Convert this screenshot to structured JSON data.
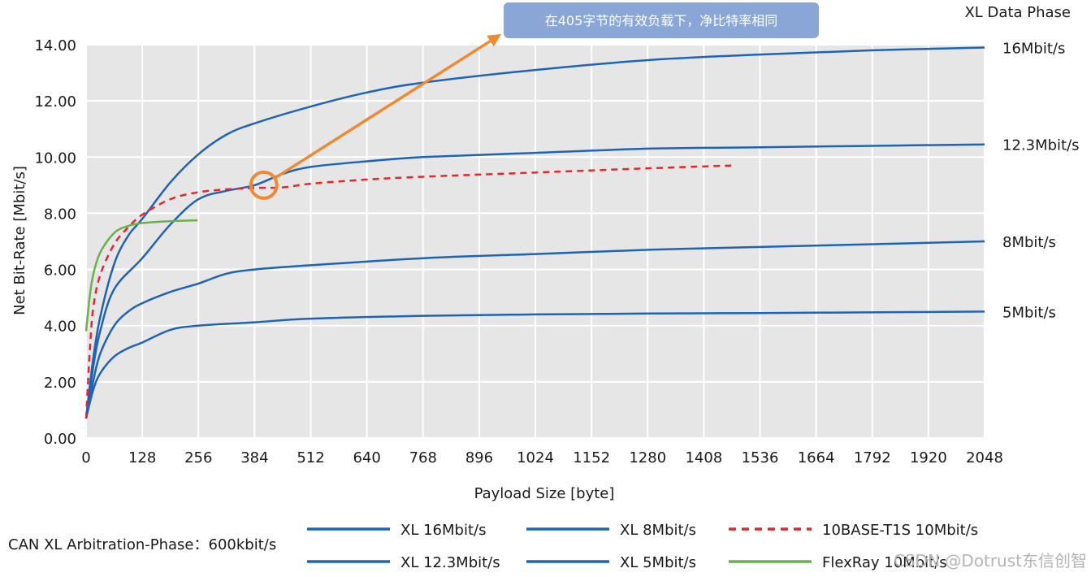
{
  "chart_data": {
    "type": "line",
    "xlabel": "Payload Size [byte]",
    "ylabel": "Net Bit-Rate [Mbit/s]",
    "xlim": [
      0,
      2048
    ],
    "ylim": [
      0,
      14
    ],
    "grid": true,
    "x_ticks": [
      "0",
      "128",
      "256",
      "384",
      "512",
      "640",
      "768",
      "896",
      "1024",
      "1152",
      "1280",
      "1408",
      "1536",
      "1664",
      "1792",
      "1920",
      "2048"
    ],
    "y_ticks": [
      "0.00",
      "2.00",
      "4.00",
      "6.00",
      "8.00",
      "10.00",
      "12.00",
      "14.00"
    ],
    "phase_header": "XL Data Phase",
    "series": [
      {
        "name": "XL 16Mbit/s",
        "end_label": "16Mbit/s",
        "color": "#1f63b5",
        "style": "solid",
        "points": [
          [
            0,
            0.7
          ],
          [
            16,
            2.8
          ],
          [
            32,
            4.3
          ],
          [
            64,
            6.2
          ],
          [
            96,
            7.2
          ],
          [
            128,
            7.8
          ],
          [
            192,
            9.1
          ],
          [
            256,
            10.1
          ],
          [
            320,
            10.8
          ],
          [
            384,
            11.2
          ],
          [
            512,
            11.8
          ],
          [
            640,
            12.3
          ],
          [
            768,
            12.65
          ],
          [
            1024,
            13.1
          ],
          [
            1280,
            13.45
          ],
          [
            1536,
            13.65
          ],
          [
            1792,
            13.8
          ],
          [
            2048,
            13.9
          ]
        ]
      },
      {
        "name": "XL 12.3Mbit/s",
        "end_label": "12.3Mbit/s",
        "color": "#1f63b5",
        "style": "solid",
        "points": [
          [
            0,
            0.7
          ],
          [
            16,
            2.5
          ],
          [
            32,
            3.8
          ],
          [
            64,
            5.3
          ],
          [
            128,
            6.4
          ],
          [
            192,
            7.6
          ],
          [
            256,
            8.5
          ],
          [
            320,
            8.8
          ],
          [
            384,
            9.0
          ],
          [
            448,
            9.4
          ],
          [
            512,
            9.65
          ],
          [
            640,
            9.85
          ],
          [
            768,
            10.0
          ],
          [
            1024,
            10.15
          ],
          [
            1280,
            10.3
          ],
          [
            1536,
            10.35
          ],
          [
            2048,
            10.45
          ]
        ]
      },
      {
        "name": "XL 8Mbit/s",
        "end_label": "8Mbit/s",
        "color": "#1f63b5",
        "style": "solid",
        "points": [
          [
            0,
            0.7
          ],
          [
            16,
            2.0
          ],
          [
            32,
            3.0
          ],
          [
            64,
            4.0
          ],
          [
            96,
            4.5
          ],
          [
            128,
            4.8
          ],
          [
            192,
            5.2
          ],
          [
            256,
            5.5
          ],
          [
            320,
            5.85
          ],
          [
            384,
            6.0
          ],
          [
            512,
            6.15
          ],
          [
            768,
            6.4
          ],
          [
            1024,
            6.55
          ],
          [
            1280,
            6.7
          ],
          [
            1536,
            6.8
          ],
          [
            2048,
            7.0
          ]
        ]
      },
      {
        "name": "XL 5Mbit/s",
        "end_label": "5Mbit/s",
        "color": "#1f63b5",
        "style": "solid",
        "points": [
          [
            0,
            0.7
          ],
          [
            16,
            1.7
          ],
          [
            32,
            2.3
          ],
          [
            64,
            2.9
          ],
          [
            96,
            3.2
          ],
          [
            128,
            3.4
          ],
          [
            192,
            3.85
          ],
          [
            256,
            4.0
          ],
          [
            384,
            4.12
          ],
          [
            512,
            4.25
          ],
          [
            768,
            4.35
          ],
          [
            1024,
            4.4
          ],
          [
            1280,
            4.43
          ],
          [
            1536,
            4.45
          ],
          [
            2048,
            4.5
          ]
        ]
      },
      {
        "name": "10BASE-T1S 10Mbit/s",
        "color": "#e8262a",
        "style": "dashed",
        "points": [
          [
            0,
            0.7
          ],
          [
            8,
            3.0
          ],
          [
            16,
            4.6
          ],
          [
            32,
            5.8
          ],
          [
            64,
            6.9
          ],
          [
            96,
            7.5
          ],
          [
            128,
            7.95
          ],
          [
            192,
            8.5
          ],
          [
            256,
            8.75
          ],
          [
            320,
            8.85
          ],
          [
            384,
            8.9
          ],
          [
            448,
            8.92
          ],
          [
            512,
            9.05
          ],
          [
            640,
            9.2
          ],
          [
            768,
            9.3
          ],
          [
            1024,
            9.45
          ],
          [
            1280,
            9.6
          ],
          [
            1472,
            9.7
          ]
        ]
      },
      {
        "name": "FlexRay 10Mbit/s",
        "color": "#6ab04c",
        "style": "solid",
        "points": [
          [
            0,
            3.8
          ],
          [
            8,
            5.0
          ],
          [
            16,
            5.8
          ],
          [
            32,
            6.6
          ],
          [
            64,
            7.3
          ],
          [
            96,
            7.55
          ],
          [
            128,
            7.65
          ],
          [
            192,
            7.72
          ],
          [
            254,
            7.75
          ]
        ]
      }
    ],
    "annotation": {
      "text": "在405字节的有效负载下，净比特率相同",
      "x": 405,
      "y": 9.0
    }
  },
  "footer": {
    "arbitration": "CAN XL Arbitration-Phase：600kbit/s",
    "watermark": "CSDN @Dotrust东信创智"
  }
}
